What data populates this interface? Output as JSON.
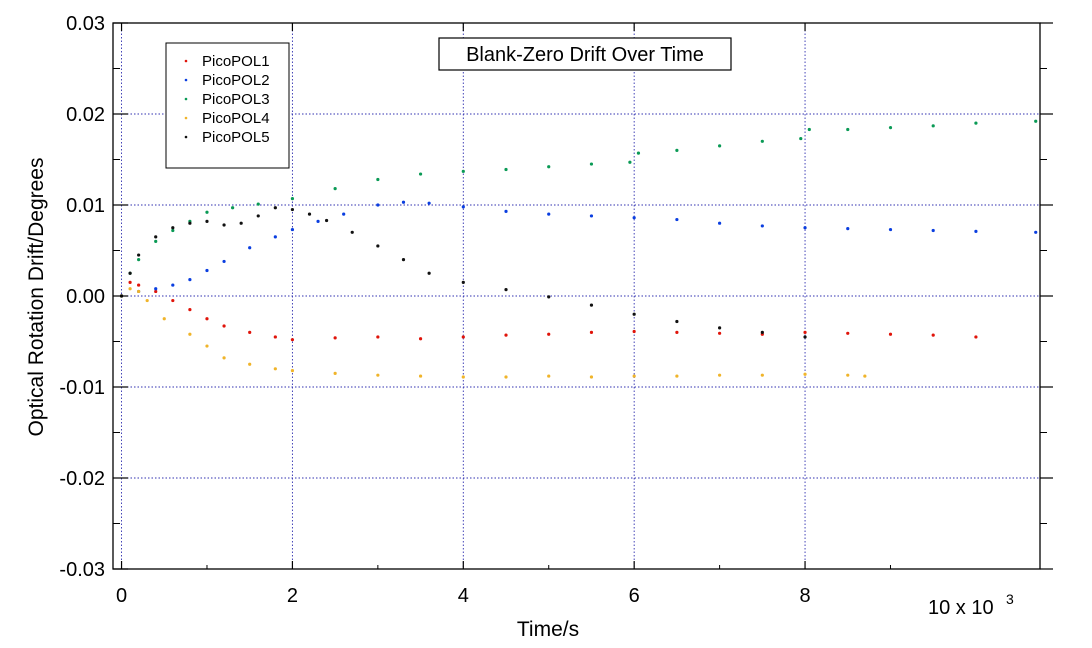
{
  "chart_data": {
    "type": "scatter",
    "title": "Blank-Zero Drift Over Time",
    "xlabel": "Time/s",
    "ylabel": "Optical Rotation Drift/Degrees",
    "x_multiplier_label": "10 x 10",
    "x_multiplier_exp": "3",
    "xlim": [
      -0.1,
      10.75
    ],
    "ylim": [
      -0.03,
      0.03
    ],
    "x_ticks": [
      0,
      2,
      4,
      6,
      8
    ],
    "x_tick_labels": [
      "0",
      "2",
      "4",
      "6",
      "8"
    ],
    "y_ticks": [
      0.03,
      0.02,
      0.01,
      0.0,
      -0.01,
      -0.02,
      -0.03
    ],
    "y_tick_labels": [
      "0.03",
      "0.02",
      "0.01",
      "0.00",
      "-0.01",
      "-0.02",
      "-0.03"
    ],
    "grid": true,
    "legend_position": "top-left",
    "series": [
      {
        "name": "PicoPOL1",
        "color": "#e0140a",
        "x": [
          0,
          0.1,
          0.2,
          0.4,
          0.6,
          0.8,
          1.0,
          1.2,
          1.5,
          1.8,
          2.0,
          2.5,
          3.0,
          3.5,
          4.0,
          4.5,
          5.0,
          5.5,
          6.0,
          6.5,
          7.0,
          7.5,
          8.0,
          8.5,
          9.0,
          9.5,
          10.0
        ],
        "y": [
          0.0,
          0.0015,
          0.0012,
          0.0005,
          -0.0005,
          -0.0015,
          -0.0025,
          -0.0033,
          -0.004,
          -0.0045,
          -0.0048,
          -0.0046,
          -0.0045,
          -0.0047,
          -0.0045,
          -0.0043,
          -0.0042,
          -0.004,
          -0.0039,
          -0.004,
          -0.0041,
          -0.0042,
          -0.004,
          -0.0041,
          -0.0042,
          -0.0043,
          -0.0045
        ]
      },
      {
        "name": "PicoPOL2",
        "color": "#0a3ee0",
        "x": [
          0,
          0.2,
          0.4,
          0.6,
          0.8,
          1.0,
          1.2,
          1.5,
          1.8,
          2.0,
          2.3,
          2.6,
          3.0,
          3.3,
          3.6,
          4.0,
          4.5,
          5.0,
          5.5,
          6.0,
          6.5,
          7.0,
          7.5,
          8.0,
          8.5,
          9.0,
          9.5,
          10.0,
          10.7
        ],
        "y": [
          0.0,
          0.0005,
          0.0008,
          0.0012,
          0.0018,
          0.0028,
          0.0038,
          0.0053,
          0.0065,
          0.0073,
          0.0082,
          0.009,
          0.01,
          0.0103,
          0.0102,
          0.0098,
          0.0093,
          0.009,
          0.0088,
          0.0086,
          0.0084,
          0.008,
          0.0077,
          0.0075,
          0.0074,
          0.0073,
          0.0072,
          0.0071,
          0.007
        ]
      },
      {
        "name": "PicoPOL3",
        "color": "#0a9a55",
        "x": [
          0,
          0.1,
          0.2,
          0.4,
          0.6,
          0.8,
          1.0,
          1.3,
          1.6,
          2.0,
          2.5,
          3.0,
          3.5,
          4.0,
          4.5,
          5.0,
          5.5,
          5.95,
          6.05,
          6.5,
          7.0,
          7.5,
          7.95,
          8.05,
          8.5,
          9.0,
          9.5,
          10.0,
          10.7
        ],
        "y": [
          0.0,
          0.0025,
          0.004,
          0.006,
          0.0072,
          0.0082,
          0.0092,
          0.0097,
          0.0101,
          0.0107,
          0.0118,
          0.0128,
          0.0134,
          0.0137,
          0.0139,
          0.0142,
          0.0145,
          0.0147,
          0.0157,
          0.016,
          0.0165,
          0.017,
          0.0173,
          0.0183,
          0.0183,
          0.0185,
          0.0187,
          0.019,
          0.0192
        ]
      },
      {
        "name": "PicoPOL4",
        "color": "#f0b42a",
        "x": [
          0,
          0.1,
          0.2,
          0.3,
          0.5,
          0.8,
          1.0,
          1.2,
          1.5,
          1.8,
          2.0,
          2.5,
          3.0,
          3.5,
          4.0,
          4.5,
          5.0,
          5.5,
          6.0,
          6.5,
          7.0,
          7.5,
          8.0,
          8.5,
          8.7
        ],
        "y": [
          0.0,
          0.0008,
          0.0005,
          -0.0005,
          -0.0025,
          -0.0042,
          -0.0055,
          -0.0068,
          -0.0075,
          -0.008,
          -0.0082,
          -0.0085,
          -0.0087,
          -0.0088,
          -0.0089,
          -0.0089,
          -0.0088,
          -0.0089,
          -0.0088,
          -0.0088,
          -0.0087,
          -0.0087,
          -0.0086,
          -0.0087,
          -0.0088
        ]
      },
      {
        "name": "PicoPOL5",
        "color": "#111111",
        "x": [
          0,
          0.1,
          0.2,
          0.4,
          0.6,
          0.8,
          1.0,
          1.2,
          1.4,
          1.6,
          1.8,
          2.0,
          2.2,
          2.4,
          2.7,
          3.0,
          3.3,
          3.6,
          4.0,
          4.5,
          5.0,
          5.5,
          6.0,
          6.5,
          7.0,
          7.5,
          8.0
        ],
        "y": [
          0.0,
          0.0025,
          0.0045,
          0.0065,
          0.0075,
          0.008,
          0.0082,
          0.0078,
          0.008,
          0.0088,
          0.0097,
          0.0095,
          0.009,
          0.0083,
          0.007,
          0.0055,
          0.004,
          0.0025,
          0.0015,
          0.0007,
          -0.0001,
          -0.001,
          -0.002,
          -0.0028,
          -0.0035,
          -0.004,
          -0.0045
        ]
      }
    ]
  }
}
